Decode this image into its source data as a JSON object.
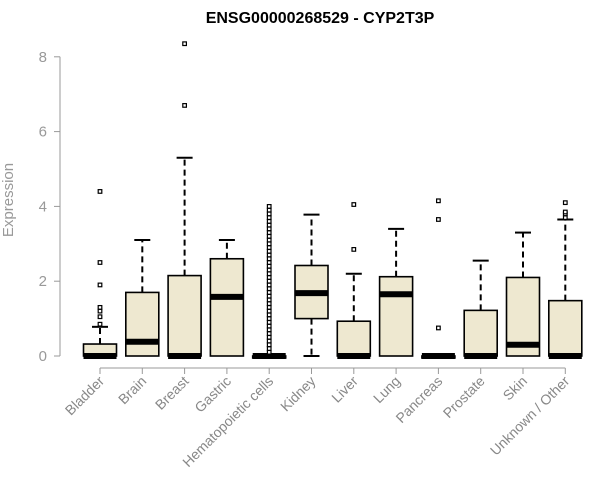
{
  "chart_data": {
    "type": "boxplot",
    "title": "ENSG00000268529 - CYP2T3P",
    "xlabel": "",
    "ylabel": "Expression",
    "ylim": [
      0,
      8.5
    ],
    "yticks": [
      0,
      2,
      4,
      6,
      8
    ],
    "grid": false,
    "colors": {
      "box_fill": "#EEE8D0",
      "outline": "#000000",
      "axis": "#999999"
    },
    "categories": [
      "Bladder",
      "Brain",
      "Breast",
      "Gastric",
      "Hematopoietic cells",
      "Kidney",
      "Liver",
      "Lung",
      "Pancreas",
      "Prostate",
      "Skin",
      "Unknown / Other"
    ],
    "boxes": [
      {
        "name": "Bladder",
        "min": 0,
        "q1": 0,
        "median": 0,
        "q3": 0.32,
        "max": 0.78,
        "outliers": [
          0.85,
          1.05,
          1.2,
          1.3,
          1.9,
          2.5,
          4.4
        ]
      },
      {
        "name": "Brain",
        "min": 0,
        "q1": 0,
        "median": 0.38,
        "q3": 1.7,
        "max": 3.1,
        "outliers": []
      },
      {
        "name": "Breast",
        "min": 0,
        "q1": 0,
        "median": 0,
        "q3": 2.15,
        "max": 5.3,
        "outliers": [
          6.7,
          8.35
        ]
      },
      {
        "name": "Gastric",
        "min": 0,
        "q1": 0,
        "median": 1.58,
        "q3": 2.6,
        "max": 3.1,
        "outliers": []
      },
      {
        "name": "Hematopoietic cells",
        "min": 0,
        "q1": 0,
        "median": 0,
        "q3": 0,
        "max": 0,
        "outliers": [
          0.1,
          0.2,
          0.3,
          0.4,
          0.5,
          0.6,
          0.7,
          0.8,
          0.9,
          1.0,
          1.1,
          1.2,
          1.3,
          1.4,
          1.5,
          1.6,
          1.7,
          1.8,
          1.9,
          2.0,
          2.1,
          2.2,
          2.3,
          2.4,
          2.5,
          2.6,
          2.7,
          2.8,
          2.9,
          3.0,
          3.1,
          3.2,
          3.3,
          3.4,
          3.5,
          3.6,
          3.7,
          3.8,
          3.9,
          4.0
        ]
      },
      {
        "name": "Kidney",
        "min": 0,
        "q1": 1.0,
        "median": 1.68,
        "q3": 2.42,
        "max": 3.78,
        "outliers": []
      },
      {
        "name": "Liver",
        "min": 0,
        "q1": 0,
        "median": 0,
        "q3": 0.93,
        "max": 2.2,
        "outliers": [
          2.85,
          4.05
        ]
      },
      {
        "name": "Lung",
        "min": 0,
        "q1": 0,
        "median": 1.65,
        "q3": 2.12,
        "max": 3.4,
        "outliers": []
      },
      {
        "name": "Pancreas",
        "min": 0,
        "q1": 0,
        "median": 0,
        "q3": 0,
        "max": 0,
        "outliers": [
          0.75,
          3.65,
          4.15
        ]
      },
      {
        "name": "Prostate",
        "min": 0,
        "q1": 0,
        "median": 0,
        "q3": 1.22,
        "max": 2.55,
        "outliers": []
      },
      {
        "name": "Skin",
        "min": 0,
        "q1": 0,
        "median": 0.3,
        "q3": 2.1,
        "max": 3.3,
        "outliers": []
      },
      {
        "name": "Unknown / Other",
        "min": 0,
        "q1": 0,
        "median": 0,
        "q3": 1.48,
        "max": 3.65,
        "outliers": [
          3.7,
          3.8,
          3.85,
          4.1
        ]
      }
    ]
  }
}
